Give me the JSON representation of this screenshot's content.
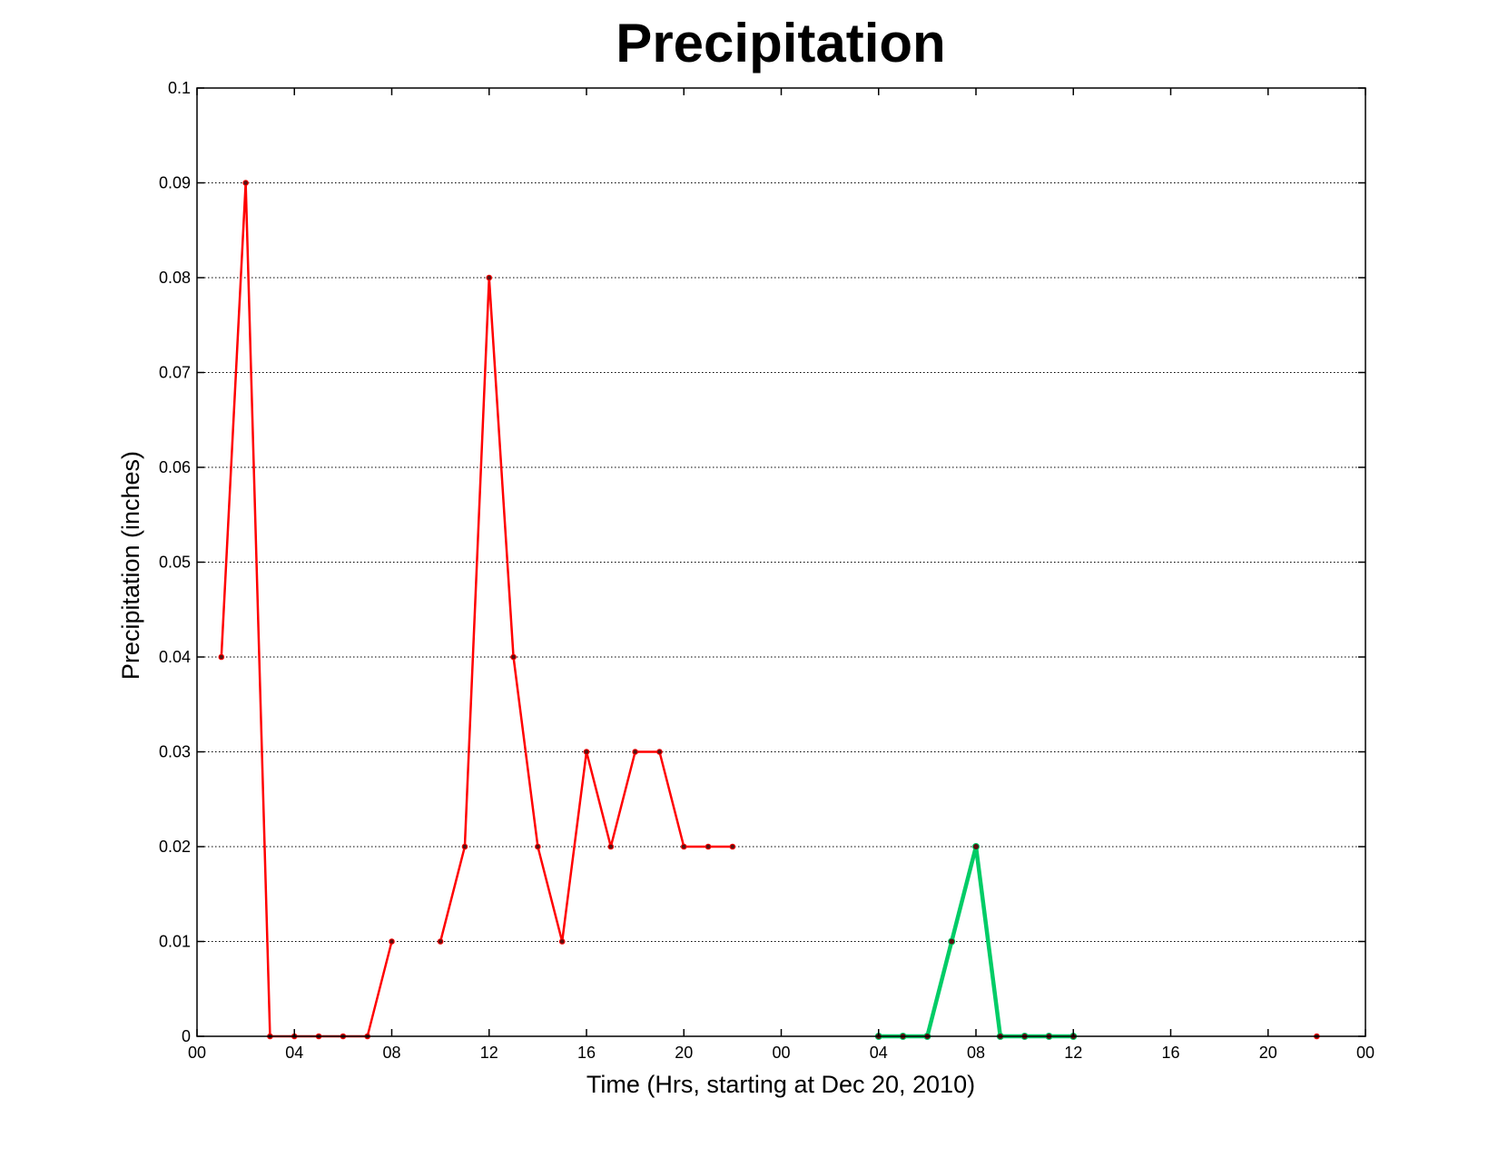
{
  "chart_data": {
    "type": "line",
    "title": "Precipitation",
    "xlabel": "Time (Hrs, starting at Dec 20, 2010)",
    "ylabel": "Precipitation (inches)",
    "xlim": [
      0,
      48
    ],
    "ylim": [
      0,
      0.1
    ],
    "x_ticks": [
      0,
      4,
      8,
      12,
      16,
      20,
      24,
      28,
      32,
      36,
      40,
      44,
      48
    ],
    "x_tick_labels": [
      "00",
      "04",
      "08",
      "12",
      "16",
      "20",
      "00",
      "04",
      "08",
      "12",
      "16",
      "20",
      "00"
    ],
    "y_ticks": [
      0,
      0.01,
      0.02,
      0.03,
      0.04,
      0.05,
      0.06,
      0.07,
      0.08,
      0.09,
      0.1
    ],
    "y_tick_labels": [
      "0",
      "0.01",
      "0.02",
      "0.03",
      "0.04",
      "0.05",
      "0.06",
      "0.07",
      "0.08",
      "0.09",
      "0.1"
    ],
    "grid": true,
    "grid_axis": "y",
    "series": [
      {
        "color": "#ff0000",
        "segments": [
          [
            [
              1,
              0.04
            ],
            [
              2,
              0.09
            ],
            [
              3,
              0
            ],
            [
              4,
              0
            ],
            [
              5,
              0
            ],
            [
              6,
              0
            ],
            [
              7,
              0
            ],
            [
              8,
              0.01
            ]
          ],
          [
            [
              10,
              0.01
            ],
            [
              11,
              0.02
            ],
            [
              12,
              0.08
            ],
            [
              13,
              0.04
            ],
            [
              14,
              0.02
            ],
            [
              15,
              0.01
            ],
            [
              16,
              0.03
            ],
            [
              17,
              0.02
            ],
            [
              18,
              0.03
            ],
            [
              19,
              0.03
            ],
            [
              20,
              0.02
            ],
            [
              21,
              0.02
            ],
            [
              22,
              0.02
            ]
          ],
          [
            [
              46,
              0
            ]
          ]
        ]
      },
      {
        "color": "#00cc66",
        "segments": [
          [
            [
              28,
              0
            ],
            [
              29,
              0
            ],
            [
              30,
              0
            ],
            [
              31,
              0.01
            ],
            [
              32,
              0.02
            ],
            [
              33,
              0
            ],
            [
              34,
              0
            ],
            [
              35,
              0
            ],
            [
              36,
              0
            ]
          ]
        ]
      }
    ]
  }
}
